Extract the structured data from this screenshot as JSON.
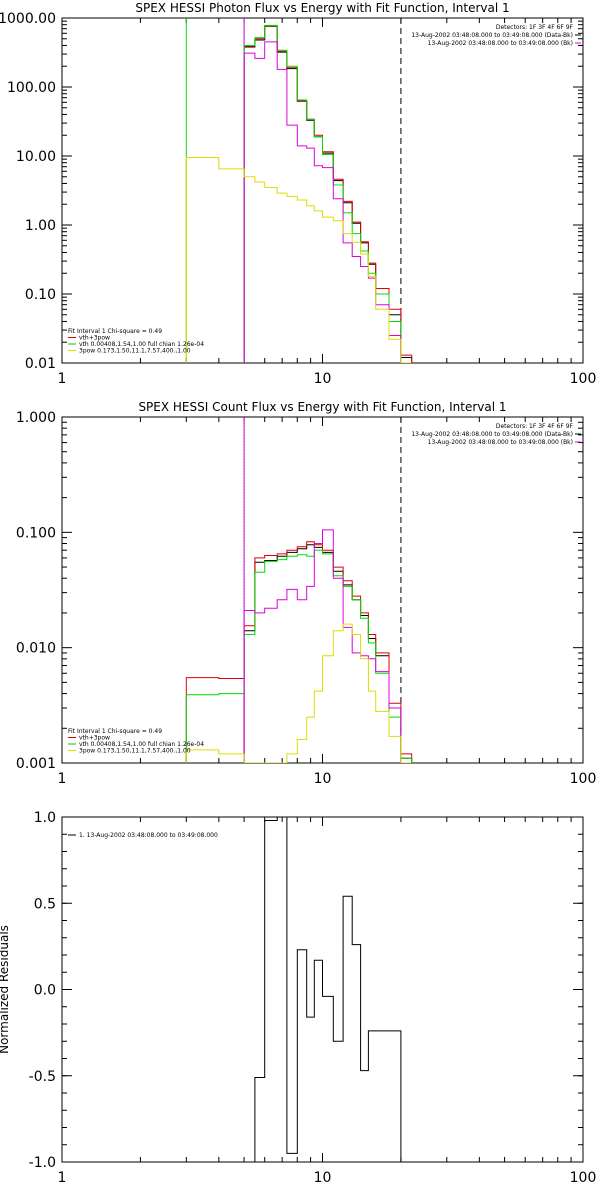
{
  "chart_data": [
    {
      "type": "line",
      "title": "SPEX HESSI Photon Flux vs Energy with Fit Function, Interval 1",
      "xlabel": "",
      "ylabel": "",
      "x_scale": "log",
      "y_scale": "log",
      "xlim": [
        1,
        100
      ],
      "ylim": [
        0.01,
        1000
      ],
      "x_tick_labels": [
        "1",
        "10",
        "100"
      ],
      "y_tick_labels": [
        "0.01",
        "0.10",
        "1.00",
        "10.00",
        "100.00",
        "1000.00"
      ],
      "vlines": [
        {
          "x": 3,
          "color": "#00dd00",
          "style": "solid"
        },
        {
          "x": 5,
          "color": "#00dd00",
          "style": "dotted"
        },
        {
          "x": 5,
          "color": "#dd00dd",
          "style": "solid"
        },
        {
          "x": 20,
          "color": "#000000",
          "style": "dashed"
        }
      ],
      "info_lines": [
        "Detectors: 1F 3F 4F 6F 9F",
        "13-Aug-2002 03:48:08.000 to 03:49:08.000 (Data-Bk)",
        "13-Aug-2002 03:48:08.000 to 03:49:08.000 (Bk)"
      ],
      "legend_lines": [
        {
          "text": "Fit Interval 1    Chi-square = 0.49",
          "color": "#000000"
        },
        {
          "text": "vth+3pow",
          "color": "#dd0000"
        },
        {
          "text": "vth 0.00408,1.54,1.00  full chian 1.26e-04",
          "color": "#00cc00"
        },
        {
          "text": "3pow 0.173,1.50,11.1,7.57,400.,1.00",
          "color": "#dddd00"
        }
      ],
      "series": [
        {
          "color": "#000000",
          "edges": [
            5,
            5.5,
            6,
            6.7,
            7.3,
            8,
            8.7,
            9.3,
            10,
            11,
            12,
            13,
            14,
            15,
            16,
            18,
            20,
            22
          ],
          "values": [
            380,
            480,
            760,
            320,
            185,
            62,
            33,
            19,
            11,
            4.4,
            2.1,
            1.06,
            0.55,
            0.27,
            0.12,
            0.05,
            0.012
          ]
        },
        {
          "color": "#dd0000",
          "edges": [
            5,
            5.5,
            6,
            6.7,
            7.3,
            8,
            8.7,
            9.3,
            10,
            11,
            12,
            13,
            14,
            15,
            16,
            18,
            20,
            22
          ],
          "values": [
            390,
            500,
            770,
            330,
            190,
            63,
            34,
            20,
            11.5,
            4.6,
            2.2,
            1.1,
            0.57,
            0.28,
            0.12,
            0.06,
            0.013
          ]
        },
        {
          "color": "#00dd00",
          "edges": [
            5,
            5.5,
            6,
            6.7,
            7.3,
            8,
            8.7,
            9.3,
            10,
            11,
            12,
            13,
            14,
            15,
            16,
            18,
            20,
            22
          ],
          "values": [
            400,
            520,
            780,
            340,
            200,
            65,
            34,
            19,
            10.5,
            3.8,
            1.5,
            0.75,
            0.42,
            0.2,
            0.1,
            0.04,
            0.01
          ]
        },
        {
          "color": "#dd00dd",
          "edges": [
            5,
            5.5,
            6,
            6.7,
            7.3,
            8,
            8.7,
            9.3,
            10,
            11,
            12,
            13,
            14,
            15,
            16,
            18,
            20
          ],
          "values": [
            310,
            260,
            450,
            180,
            28,
            14,
            13,
            7.2,
            6.8,
            2.4,
            0.55,
            0.35,
            0.25,
            0.17,
            0.07,
            0.025
          ]
        },
        {
          "color": "#dddd00",
          "edges": [
            3,
            4,
            5,
            5.5,
            6,
            6.7,
            7.3,
            8,
            8.7,
            9.3,
            10,
            11,
            12,
            13,
            14,
            15,
            16,
            18,
            20,
            22
          ],
          "values": [
            9.5,
            6.5,
            5.0,
            4.2,
            3.5,
            2.9,
            2.6,
            2.3,
            1.9,
            1.6,
            1.3,
            1.15,
            0.75,
            0.56,
            0.38,
            0.18,
            0.06,
            0.022,
            0.01
          ]
        }
      ]
    },
    {
      "type": "line",
      "title": "SPEX HESSI Count Flux vs Energy with Fit Function, Interval 1",
      "xlabel": "",
      "ylabel": "",
      "x_scale": "log",
      "y_scale": "log",
      "xlim": [
        1,
        100
      ],
      "ylim": [
        0.001,
        1
      ],
      "x_tick_labels": [
        "1",
        "10",
        "100"
      ],
      "y_tick_labels": [
        "0.001",
        "0.010",
        "0.100",
        "1.000"
      ],
      "vlines": [
        {
          "x": 5,
          "color": "#000000",
          "style": "dotted"
        },
        {
          "x": 5,
          "color": "#dd00dd",
          "style": "solid"
        },
        {
          "x": 20,
          "color": "#000000",
          "style": "dashed"
        }
      ],
      "info_lines": [
        "Detectors: 1F 3F 4F 6F 9F",
        "13-Aug-2002 03:48:08.000 to 03:49:08.000 (Data-Bk)",
        "13-Aug-2002 03:48:08.000 to 03:49:08.000 (Bk)"
      ],
      "legend_lines": [
        {
          "text": "Fit Interval 1    Chi-square = 0.49",
          "color": "#000000"
        },
        {
          "text": "vth+3pow",
          "color": "#dd0000"
        },
        {
          "text": "vth 0.00408,1.54,1.00  full chian 1.26e-04",
          "color": "#00cc00"
        },
        {
          "text": "3pow 0.173,1.50,11.1,7.57,400.,1.00",
          "color": "#dddd00"
        }
      ],
      "series": [
        {
          "color": "#000000",
          "edges": [
            5,
            5.5,
            6,
            6.7,
            7.3,
            8,
            8.7,
            9.3,
            10,
            11,
            12,
            13,
            14,
            15,
            16,
            18,
            20,
            22
          ],
          "values": [
            0.014,
            0.055,
            0.057,
            0.062,
            0.067,
            0.072,
            0.078,
            0.074,
            0.067,
            0.046,
            0.035,
            0.026,
            0.019,
            0.012,
            0.0085,
            0.003,
            0.0011
          ]
        },
        {
          "color": "#dd0000",
          "edges": [
            3,
            4,
            5,
            5.5,
            6,
            6.7,
            7.3,
            8,
            8.7,
            9.3,
            10,
            11,
            12,
            13,
            14,
            15,
            16,
            18,
            20,
            22
          ],
          "values": [
            0.0055,
            0.0054,
            0.0155,
            0.06,
            0.063,
            0.065,
            0.07,
            0.075,
            0.083,
            0.078,
            0.07,
            0.05,
            0.038,
            0.028,
            0.02,
            0.013,
            0.009,
            0.0033,
            0.0012
          ]
        },
        {
          "color": "#00dd00",
          "edges": [
            3,
            4,
            5,
            5.5,
            6,
            6.7,
            7.3,
            8,
            8.7,
            9.3,
            10,
            11,
            12,
            13,
            14,
            15,
            16,
            18,
            20,
            22
          ],
          "values": [
            0.0039,
            0.004,
            0.013,
            0.045,
            0.056,
            0.058,
            0.062,
            0.064,
            0.062,
            0.07,
            0.065,
            0.042,
            0.034,
            0.026,
            0.018,
            0.011,
            0.006,
            0.0025,
            0.0011
          ]
        },
        {
          "color": "#dd00dd",
          "edges": [
            5,
            5.5,
            6,
            6.7,
            7.3,
            8,
            8.7,
            9.3,
            10,
            11,
            12,
            13,
            14,
            15,
            16,
            18,
            20
          ],
          "values": [
            0.021,
            0.02,
            0.022,
            0.026,
            0.032,
            0.026,
            0.034,
            0.08,
            0.105,
            0.04,
            0.015,
            0.009,
            0.0085,
            0.008,
            0.0062,
            0.003
          ]
        },
        {
          "color": "#dddd00",
          "edges": [
            3,
            4,
            5,
            5.5,
            6,
            6.7,
            7.3,
            8,
            8.7,
            9.3,
            10,
            11,
            12,
            13,
            14,
            15,
            16,
            18,
            20,
            22
          ],
          "values": [
            0.0013,
            0.0012,
            0.001,
            0.001,
            0.0009,
            0.0009,
            0.0012,
            0.0016,
            0.0025,
            0.0042,
            0.0085,
            0.014,
            0.016,
            0.013,
            0.008,
            0.0042,
            0.0028,
            0.0017,
            0.001
          ]
        }
      ]
    },
    {
      "type": "line",
      "title": "",
      "xlabel": "",
      "ylabel": "Normalized Residuals",
      "x_scale": "log",
      "y_scale": "linear",
      "xlim": [
        1,
        100
      ],
      "ylim": [
        -1,
        1
      ],
      "x_tick_labels": [
        "1",
        "10",
        "100"
      ],
      "y_tick_labels": [
        "-1.0",
        "-0.5",
        "0.0",
        "0.5",
        "1.0"
      ],
      "legend_lines": [
        {
          "text": "1. 13-Aug-2002 03:48:08.000 to 03:49:08.000",
          "color": "#000000"
        }
      ],
      "series": [
        {
          "color": "#000000",
          "edges": [
            5,
            5.5,
            6,
            6.7,
            7.3,
            8,
            8.7,
            9.3,
            10,
            11,
            12,
            13,
            14,
            15,
            16,
            18,
            20
          ],
          "values": [
            -1.0,
            -0.51,
            0.98,
            1.0,
            -0.95,
            0.23,
            -0.16,
            0.17,
            -0.04,
            -0.3,
            0.54,
            0.26,
            -0.47,
            -0.24,
            -0.24,
            -0.24
          ]
        }
      ]
    }
  ]
}
